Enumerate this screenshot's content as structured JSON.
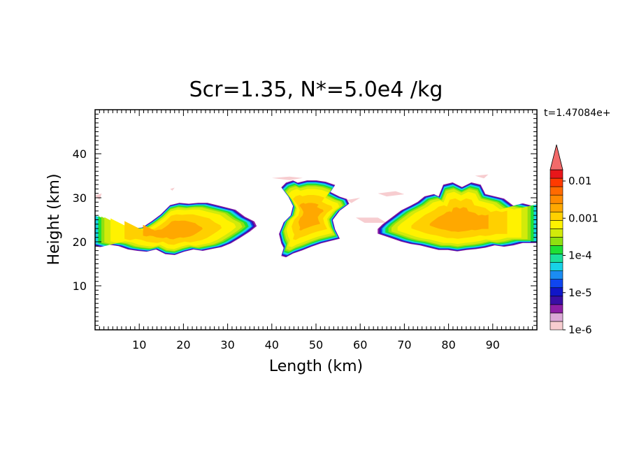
{
  "chart_data": {
    "type": "heatmap",
    "title": "Scr=1.35, N*=5.0e4 /kg",
    "xlabel": "Length  (km)",
    "ylabel": "Height  (km)",
    "time_label": "t=1.47084e+",
    "xlim": [
      0,
      100
    ],
    "ylim": [
      0,
      50
    ],
    "x_ticks": [
      "10",
      "20",
      "30",
      "40",
      "50",
      "60",
      "70",
      "80",
      "90"
    ],
    "y_ticks": [
      "10",
      "20",
      "30",
      "40"
    ],
    "colorbar": {
      "scale": "log",
      "range": [
        1e-06,
        0.02
      ],
      "tick_labels": [
        "0.01",
        "0.001",
        "1e-4",
        "1e-5",
        "1e-6"
      ],
      "colors": [
        "#f7cdd0",
        "#dba8d6",
        "#8e1fa6",
        "#3a0ea5",
        "#1016c8",
        "#0f46f0",
        "#1b8cf2",
        "#18d2e6",
        "#1be09b",
        "#1ee035",
        "#8fe010",
        "#d2ea0a",
        "#fff200",
        "#ffd000",
        "#ffa800",
        "#ff8a00",
        "#ff6a00",
        "#ff3a00",
        "#e8161a",
        "#f26a6a"
      ]
    },
    "clouds": [
      {
        "name": "left",
        "x_range": [
          0,
          36
        ],
        "z_range": [
          17,
          31
        ],
        "peak": "0.001"
      },
      {
        "name": "center",
        "x_range": [
          40,
          58
        ],
        "z_range": [
          17,
          35
        ],
        "peak": "0.001"
      },
      {
        "name": "right",
        "x_range": [
          64,
          100
        ],
        "z_range": [
          18,
          35
        ],
        "peak": "0.001"
      }
    ]
  }
}
